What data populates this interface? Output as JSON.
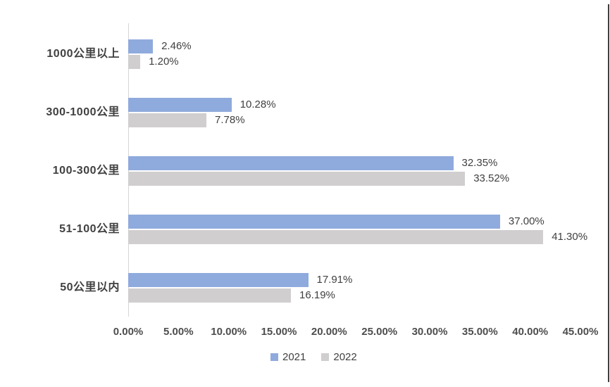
{
  "chart_data": {
    "type": "bar",
    "orientation": "horizontal",
    "title": "",
    "xlabel": "",
    "ylabel": "",
    "categories": [
      "1000公里以上",
      "300-1000公里",
      "100-300公里",
      "51-100公里",
      "50公里以内"
    ],
    "series": [
      {
        "name": "2021",
        "color": "#8FAADC",
        "values": [
          2.46,
          10.28,
          32.35,
          37.0,
          17.91
        ],
        "labels": [
          "2.46%",
          "10.28%",
          "32.35%",
          "37.00%",
          "17.91%"
        ]
      },
      {
        "name": "2022",
        "color": "#D0CECE",
        "values": [
          1.2,
          7.78,
          33.52,
          41.3,
          16.19
        ],
        "labels": [
          "1.20%",
          "7.78%",
          "33.52%",
          "41.30%",
          "16.19%"
        ]
      }
    ],
    "x_ticks": [
      "0.00%",
      "5.00%",
      "10.00%",
      "15.00%",
      "20.00%",
      "25.00%",
      "30.00%",
      "35.00%",
      "40.00%",
      "45.00%"
    ],
    "xlim": [
      0,
      45
    ],
    "grid": false,
    "legend": [
      "2021",
      "2022"
    ],
    "legend_position": "bottom",
    "axis_line_color": "#D6D6D6",
    "text_color": "#404040"
  }
}
